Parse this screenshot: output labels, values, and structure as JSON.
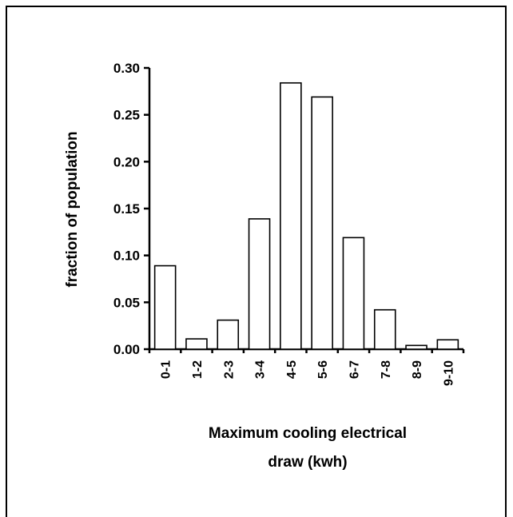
{
  "chart_data": {
    "type": "bar",
    "categories": [
      "0-1",
      "1-2",
      "2-3",
      "3-4",
      "4-5",
      "5-6",
      "6-7",
      "7-8",
      "8-9",
      "9-10"
    ],
    "values": [
      0.089,
      0.011,
      0.031,
      0.139,
      0.284,
      0.269,
      0.119,
      0.042,
      0.004,
      0.01
    ],
    "yticks": [
      "0.00",
      "0.05",
      "0.10",
      "0.15",
      "0.20",
      "0.25",
      "0.30"
    ],
    "ylim": [
      0,
      0.3
    ],
    "ylabel": "fraction of population",
    "xlabel_lines": [
      "Maximum cooling electrical",
      "draw (kwh)"
    ],
    "grid": false,
    "bar_color": "#ffffff",
    "bar_stroke": "#000000"
  }
}
